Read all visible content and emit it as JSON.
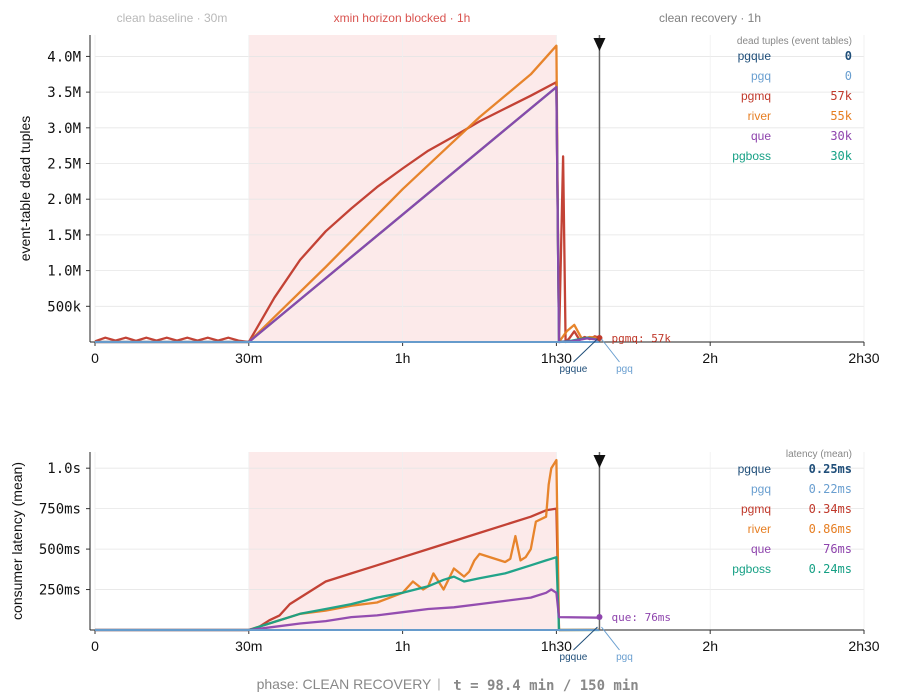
{
  "phases": {
    "baseline": "clean baseline · 30m",
    "blocked": "xmin horizon blocked · 1h",
    "recovery": "clean recovery · 1h"
  },
  "colors": {
    "pgque": "#1f4e79",
    "pgq": "#6a9fd0",
    "pgmq": "#c0392b",
    "river": "#e67e22",
    "que": "#8e44ad",
    "pgboss": "#16a085",
    "shade": "#fbe3e3",
    "muted": "#b8b8b8",
    "blockedText": "#d9534f",
    "recoveryText": "#808080"
  },
  "x_ticks": [
    "0",
    "30m",
    "1h",
    "1h30",
    "2h",
    "2h30"
  ],
  "now_min": 98.4,
  "top": {
    "ylabel": "event-table dead tuples",
    "y_ticks": [
      "500k",
      "1.0M",
      "1.5M",
      "2.0M",
      "2.5M",
      "3.0M",
      "3.5M",
      "4.0M"
    ],
    "legend_title": "dead tuples (event tables)",
    "legend": [
      {
        "key": "pgque",
        "name": "pgque",
        "value": "0",
        "bold": true
      },
      {
        "key": "pgq",
        "name": "pgq",
        "value": "0"
      },
      {
        "key": "pgmq",
        "name": "pgmq",
        "value": "57k"
      },
      {
        "key": "river",
        "name": "river",
        "value": "55k"
      },
      {
        "key": "que",
        "name": "que",
        "value": "30k"
      },
      {
        "key": "pgboss",
        "name": "pgboss",
        "value": "30k"
      }
    ],
    "annotation": "pgmq: 57k",
    "marker_labels": [
      "pgque",
      "pgq"
    ]
  },
  "bottom": {
    "ylabel": "consumer latency (mean)",
    "y_ticks": [
      "250ms",
      "500ms",
      "750ms",
      "1.0s"
    ],
    "legend_title": "latency (mean)",
    "legend": [
      {
        "key": "pgque",
        "name": "pgque",
        "value": "0.25ms",
        "bold": true
      },
      {
        "key": "pgq",
        "name": "pgq",
        "value": "0.22ms"
      },
      {
        "key": "pgmq",
        "name": "pgmq",
        "value": "0.34ms"
      },
      {
        "key": "river",
        "name": "river",
        "value": "0.86ms"
      },
      {
        "key": "que",
        "name": "que",
        "value": "76ms"
      },
      {
        "key": "pgboss",
        "name": "pgboss",
        "value": "0.24ms"
      }
    ],
    "annotation": "que: 76ms",
    "marker_labels": [
      "pgque",
      "pgq"
    ]
  },
  "status": {
    "phase_label": "phase: CLEAN RECOVERY",
    "separator": "|",
    "time_text": "t =  98.4 min / 150 min"
  },
  "chart_data": [
    {
      "type": "line",
      "ylabel": "event-table dead tuples",
      "xlim_min": [
        0,
        150
      ],
      "ylim": [
        0,
        4300000
      ],
      "shaded_range_min": [
        30,
        90
      ],
      "series": [
        {
          "name": "pgmq",
          "x": [
            0,
            2,
            4,
            6,
            8,
            10,
            12,
            14,
            16,
            18,
            20,
            22,
            24,
            26,
            28,
            30,
            35,
            40,
            45,
            50,
            55,
            60,
            65,
            70,
            75,
            80,
            85,
            90,
            90.5,
            91.3,
            91.8,
            92.5,
            93.5,
            94.5,
            95.5,
            96.5,
            97.5,
            98.4
          ],
          "y": [
            10000,
            60000,
            20000,
            60000,
            15000,
            60000,
            20000,
            60000,
            20000,
            60000,
            20000,
            60000,
            20000,
            60000,
            20000,
            0,
            620000,
            1150000,
            1550000,
            1870000,
            2170000,
            2430000,
            2680000,
            2880000,
            3090000,
            3270000,
            3450000,
            3640000,
            0,
            2600000,
            0,
            50000,
            150000,
            30000,
            70000,
            40000,
            80000,
            57000
          ]
        },
        {
          "name": "river",
          "x": [
            0,
            30,
            45,
            60,
            75,
            85,
            90,
            90.5,
            92,
            93.5,
            95,
            96.5,
            98.4
          ],
          "y": [
            0,
            0,
            1050000,
            2140000,
            3150000,
            3750000,
            4150000,
            0,
            150000,
            240000,
            40000,
            70000,
            55000
          ]
        },
        {
          "name": "pgboss",
          "x": [
            0,
            30,
            90,
            90.5,
            93,
            96,
            98.4
          ],
          "y": [
            0,
            0,
            3570000,
            0,
            20000,
            60000,
            30000
          ]
        },
        {
          "name": "que",
          "x": [
            0,
            30,
            90,
            90.5,
            93,
            96,
            98.4
          ],
          "y": [
            0,
            0,
            3570000,
            0,
            10000,
            50000,
            30000
          ]
        },
        {
          "name": "pgque",
          "x": [
            0,
            98.4
          ],
          "y": [
            0,
            0
          ]
        },
        {
          "name": "pgq",
          "x": [
            0,
            98.4
          ],
          "y": [
            0,
            0
          ]
        }
      ]
    },
    {
      "type": "line",
      "ylabel": "consumer latency (mean)",
      "xlim_min": [
        0,
        150
      ],
      "ylim_ms": [
        0,
        1100
      ],
      "shaded_range_min": [
        30,
        90
      ],
      "series": [
        {
          "name": "pgmq",
          "x": [
            0,
            30,
            32,
            34,
            36,
            38,
            40,
            45,
            50,
            55,
            60,
            65,
            70,
            75,
            80,
            85,
            88,
            90,
            90.5,
            98.4
          ],
          "y": [
            0,
            0,
            20,
            60,
            90,
            160,
            200,
            300,
            350,
            400,
            450,
            500,
            550,
            600,
            650,
            700,
            740,
            750,
            0,
            0.34
          ]
        },
        {
          "name": "river",
          "x": [
            0,
            30,
            35,
            40,
            45,
            50,
            55,
            60,
            62,
            64,
            65,
            66,
            68,
            70,
            72,
            73,
            74,
            75,
            80,
            81,
            82,
            83,
            84,
            85,
            86,
            88,
            88.5,
            89,
            90,
            90.5,
            98.4
          ],
          "y": [
            0,
            0,
            50,
            100,
            120,
            150,
            170,
            230,
            300,
            250,
            270,
            350,
            250,
            380,
            330,
            360,
            430,
            470,
            420,
            440,
            580,
            430,
            450,
            500,
            670,
            700,
            900,
            1000,
            1050,
            0,
            0.86
          ]
        },
        {
          "name": "pgboss",
          "x": [
            0,
            30,
            35,
            40,
            45,
            50,
            55,
            60,
            65,
            68,
            70,
            72,
            75,
            80,
            85,
            88,
            89,
            90,
            90.5,
            98.4
          ],
          "y": [
            0,
            0,
            50,
            100,
            130,
            160,
            200,
            230,
            270,
            310,
            330,
            300,
            320,
            350,
            400,
            430,
            440,
            450,
            0,
            0.24
          ]
        },
        {
          "name": "que",
          "x": [
            0,
            30,
            35,
            40,
            45,
            50,
            55,
            60,
            65,
            70,
            75,
            80,
            85,
            88,
            89,
            90,
            90.5,
            98.4
          ],
          "y": [
            0,
            0,
            20,
            40,
            55,
            80,
            90,
            110,
            130,
            140,
            160,
            180,
            200,
            230,
            250,
            230,
            80,
            76
          ]
        },
        {
          "name": "pgque",
          "x": [
            0,
            98.4
          ],
          "y": [
            0,
            0.25
          ]
        },
        {
          "name": "pgq",
          "x": [
            0,
            98.4
          ],
          "y": [
            0,
            0.22
          ]
        }
      ]
    }
  ]
}
